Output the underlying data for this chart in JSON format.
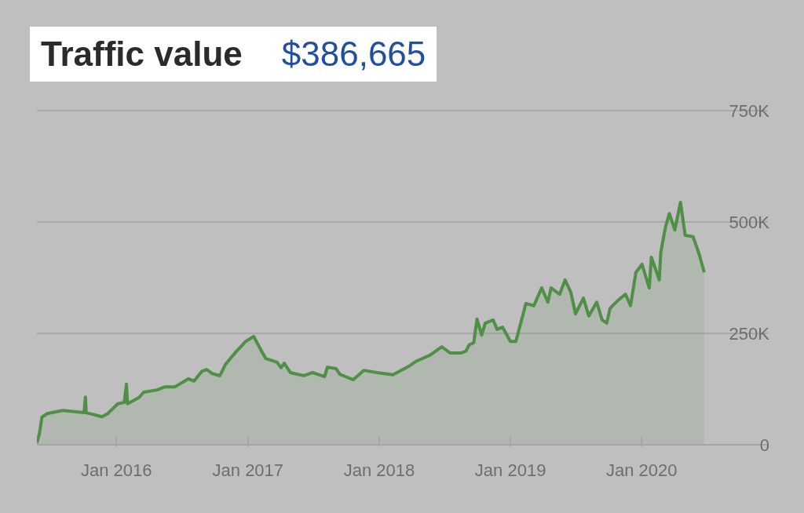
{
  "chart_data": {
    "type": "area",
    "title": "Traffic value",
    "subtitle": "$386,665",
    "x": [
      "2015-05-25",
      "2015-06-01",
      "2015-06-08",
      "2015-06-23",
      "2015-08-05",
      "2015-10-03",
      "2015-10-07",
      "2015-10-09",
      "2015-11-22",
      "2015-12-08",
      "2016-01-05",
      "2016-01-23",
      "2016-01-29",
      "2016-02-01",
      "2016-03-04",
      "2016-03-17",
      "2016-04-23",
      "2016-05-15",
      "2016-06-12",
      "2016-07-19",
      "2016-08-04",
      "2016-08-26",
      "2016-09-08",
      "2016-09-23",
      "2016-10-15",
      "2016-10-30",
      "2016-11-28",
      "2016-12-26",
      "2017-01-17",
      "2017-02-08",
      "2017-02-19",
      "2017-03-23",
      "2017-04-03",
      "2017-04-12",
      "2017-04-29",
      "2017-06-06",
      "2017-06-30",
      "2017-08-02",
      "2017-08-10",
      "2017-09-03",
      "2017-09-14",
      "2017-10-21",
      "2017-11-19",
      "2017-12-26",
      "2018-02-08",
      "2018-03-24",
      "2018-04-15",
      "2018-05-22",
      "2018-06-24",
      "2018-07-17",
      "2018-08-17",
      "2018-08-30",
      "2018-09-08",
      "2018-09-21",
      "2018-09-30",
      "2018-10-13",
      "2018-10-23",
      "2018-11-14",
      "2018-11-25",
      "2018-12-10",
      "2019-01-01",
      "2019-01-16",
      "2019-01-29",
      "2019-02-13",
      "2019-03-07",
      "2019-03-29",
      "2019-04-15",
      "2019-04-24",
      "2019-05-18",
      "2019-06-02",
      "2019-06-18",
      "2019-07-01",
      "2019-07-23",
      "2019-08-07",
      "2019-08-29",
      "2019-09-13",
      "2019-09-26",
      "2019-10-05",
      "2019-10-27",
      "2019-11-17",
      "2019-12-01",
      "2019-12-16",
      "2020-01-02",
      "2020-01-22",
      "2020-01-28",
      "2020-02-19",
      "2020-02-23",
      "2020-03-07",
      "2020-03-18",
      "2020-04-02",
      "2020-04-18",
      "2020-05-01",
      "2020-05-23",
      "2020-06-08",
      "2020-06-23"
    ],
    "series": [
      {
        "color": "#4f8f46",
        "values": [
          4000,
          25000,
          62000,
          70000,
          77000,
          72000,
          107000,
          72000,
          63000,
          70000,
          92000,
          95000,
          136000,
          92000,
          106000,
          118000,
          123000,
          130000,
          130000,
          148000,
          143000,
          165000,
          169000,
          160000,
          155000,
          180000,
          208000,
          232000,
          243000,
          210000,
          194000,
          185000,
          173000,
          183000,
          162000,
          155000,
          162000,
          153000,
          174000,
          171000,
          158000,
          146000,
          167000,
          162000,
          157000,
          176000,
          188000,
          201000,
          220000,
          206000,
          206000,
          210000,
          224000,
          229000,
          282000,
          246000,
          273000,
          280000,
          259000,
          264000,
          232000,
          232000,
          271000,
          317000,
          312000,
          352000,
          320000,
          352000,
          338000,
          370000,
          342000,
          294000,
          329000,
          289000,
          320000,
          280000,
          273000,
          306000,
          324000,
          338000,
          312000,
          387000,
          405000,
          352000,
          421000,
          370000,
          431000,
          488000,
          519000,
          482000,
          544000,
          470000,
          467000,
          430000,
          387000
        ]
      }
    ],
    "xlim": [
      "2015-05-25",
      "2020-12-17"
    ],
    "xticks": [
      {
        "value": "2016-01-01",
        "label": "Jan 2016"
      },
      {
        "value": "2017-01-01",
        "label": "Jan 2017"
      },
      {
        "value": "2018-01-01",
        "label": "Jan 2018"
      },
      {
        "value": "2019-01-01",
        "label": "Jan 2019"
      },
      {
        "value": "2020-01-01",
        "label": "Jan 2020"
      }
    ],
    "ylim": [
      0,
      750000
    ],
    "yticks": [
      {
        "value": 0,
        "label": "0"
      },
      {
        "value": 250000,
        "label": "250K"
      },
      {
        "value": 500000,
        "label": "500K"
      },
      {
        "value": 750000,
        "label": "750K"
      }
    ],
    "grid": "y"
  }
}
